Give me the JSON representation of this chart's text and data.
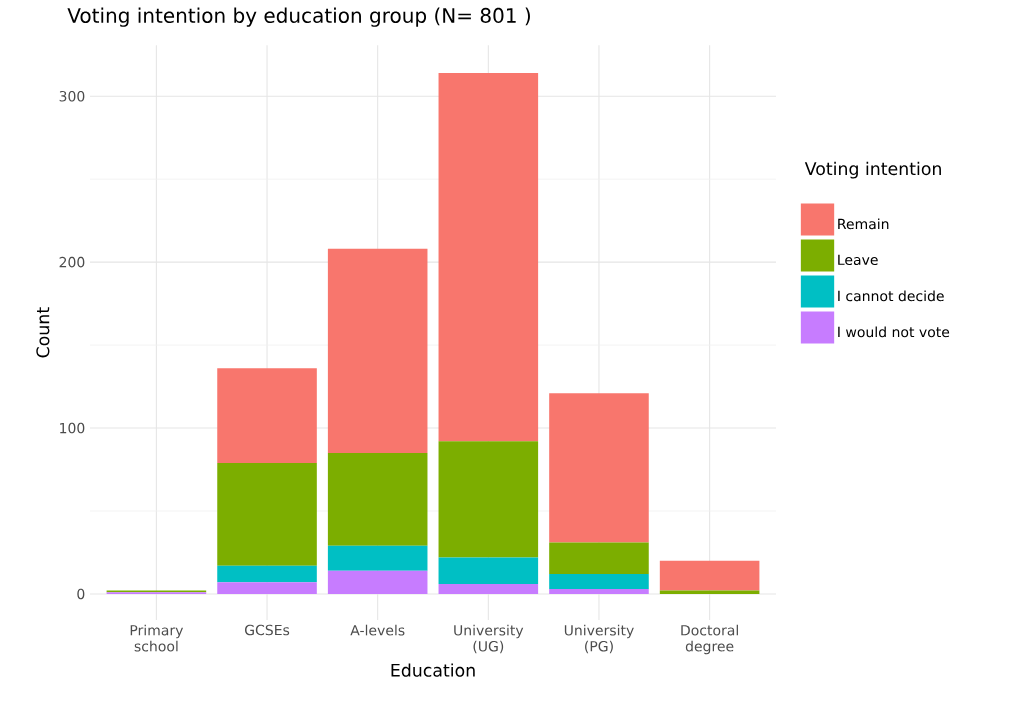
{
  "chart_data": {
    "type": "bar",
    "stacked": true,
    "title": "Voting intention by education group (N= 801 )",
    "xlabel": "Education",
    "ylabel": "Count",
    "legend_title": "Voting intention",
    "categories": [
      "Primary school",
      "GCSEs",
      "A-levels",
      "University (UG)",
      "University (PG)",
      "Doctoral degree"
    ],
    "series": [
      {
        "name": "I would not vote",
        "color": "#c77cff",
        "values": [
          1,
          7,
          14,
          6,
          3,
          0
        ]
      },
      {
        "name": "I cannot decide",
        "color": "#00bfc4",
        "values": [
          0,
          10,
          15,
          16,
          9,
          0
        ]
      },
      {
        "name": "Leave",
        "color": "#7cae00",
        "values": [
          1,
          62,
          56,
          70,
          19,
          2
        ]
      },
      {
        "name": "Remain",
        "color": "#f8766d",
        "values": [
          0,
          57,
          123,
          222,
          90,
          18
        ]
      }
    ],
    "ylim": [
      -15.7,
      330.7
    ],
    "yticks": [
      0,
      100,
      200,
      300
    ],
    "grid": true,
    "legend": "right"
  }
}
